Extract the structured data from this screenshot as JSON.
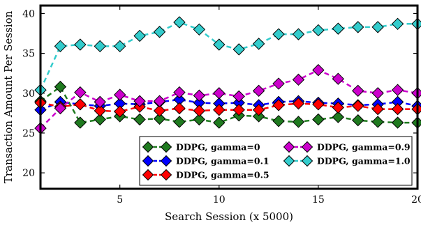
{
  "chart_data": {
    "type": "line",
    "title": "",
    "xlabel": "Search Session (x 5000)",
    "ylabel": "Transaction Amount Per Session",
    "xlim": [
      1,
      20
    ],
    "ylim": [
      18,
      41
    ],
    "xticks": [
      5,
      10,
      15,
      20
    ],
    "yticks": [
      20,
      25,
      30,
      35,
      40
    ],
    "grid": false,
    "legend_position": "lower-right",
    "x": [
      1,
      2,
      3,
      4,
      5,
      6,
      7,
      8,
      9,
      10,
      11,
      12,
      13,
      14,
      15,
      16,
      17,
      18,
      19,
      20
    ],
    "series": [
      {
        "name": "DDPG, gamma=0",
        "color": "#1f7a1f",
        "values": [
          29.0,
          30.8,
          26.3,
          26.7,
          27.1,
          26.7,
          26.8,
          26.4,
          26.7,
          26.3,
          27.2,
          27.1,
          26.5,
          26.4,
          26.7,
          27.0,
          26.6,
          26.4,
          26.3,
          26.3
        ]
      },
      {
        "name": "DDPG, gamma=0.1",
        "color": "#0000ff",
        "values": [
          27.9,
          28.9,
          28.6,
          28.4,
          28.7,
          28.6,
          28.9,
          29.2,
          28.8,
          28.7,
          28.8,
          28.5,
          28.9,
          29.0,
          28.8,
          28.7,
          28.5,
          28.6,
          28.9,
          28.4
        ]
      },
      {
        "name": "DDPG, gamma=0.5",
        "color": "#ff0000",
        "values": [
          28.8,
          28.3,
          28.6,
          27.8,
          27.7,
          28.3,
          27.8,
          28.1,
          27.8,
          27.9,
          27.9,
          27.9,
          28.5,
          28.7,
          28.6,
          28.2,
          28.4,
          28.0,
          28.0,
          28.0
        ]
      },
      {
        "name": "DDPG, gamma=0.9",
        "color": "#cc00cc",
        "values": [
          25.6,
          28.1,
          30.1,
          28.9,
          29.8,
          29.0,
          29.0,
          30.1,
          29.7,
          30.0,
          29.6,
          30.3,
          31.2,
          31.7,
          32.9,
          31.8,
          30.3,
          30.0,
          30.4,
          30.0
        ]
      },
      {
        "name": "DDPG, gamma=1.0",
        "color": "#33cccc",
        "values": [
          30.4,
          35.9,
          36.1,
          35.9,
          35.9,
          37.2,
          37.7,
          38.9,
          38.0,
          36.1,
          35.5,
          36.2,
          37.4,
          37.4,
          37.9,
          38.1,
          38.3,
          38.3,
          38.7,
          38.7
        ]
      }
    ]
  }
}
